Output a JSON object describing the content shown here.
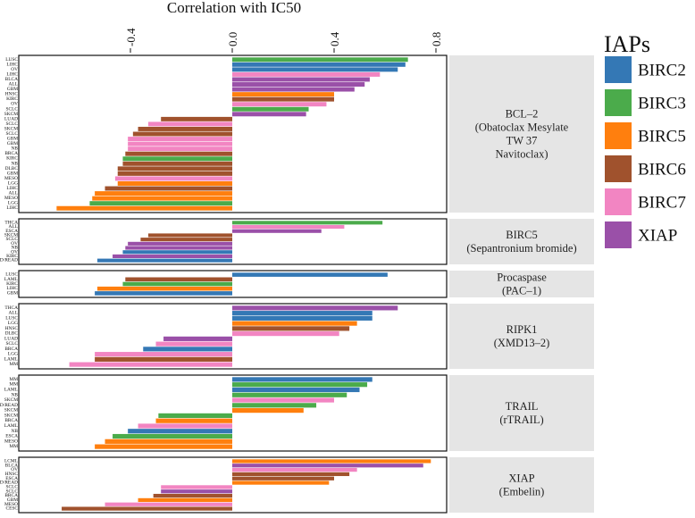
{
  "chart_data": {
    "type": "bar",
    "orientation": "horizontal",
    "axis_title": "Correlation with IC50",
    "x_ticks": [
      -0.4,
      0.0,
      0.4,
      0.8
    ],
    "x_tick_labels": [
      "-0.4",
      "0.0",
      "0.4",
      "0.8"
    ],
    "xlim": [
      -0.7,
      0.84
    ],
    "grid": false,
    "legend": {
      "title": "IAPs",
      "position": "top-right",
      "items": [
        {
          "name": "BIRC2",
          "color": "#3478b5"
        },
        {
          "name": "BIRC3",
          "color": "#4bab4b"
        },
        {
          "name": "BIRC5",
          "color": "#ff7f0e"
        },
        {
          "name": "BIRC6",
          "color": "#a0522d"
        },
        {
          "name": "BIRC7",
          "color": "#f285c2"
        },
        {
          "name": "XIAP",
          "color": "#9a50a8"
        }
      ]
    },
    "panels": [
      {
        "strip": [
          "BCL–2",
          "(Obatoclax Mesylate",
          "TW 37",
          "Navitoclax)"
        ],
        "bars": [
          {
            "label": "LUSC",
            "value": 0.69,
            "iap": "BIRC3"
          },
          {
            "label": "LIHC",
            "value": 0.68,
            "iap": "BIRC2"
          },
          {
            "label": "OV",
            "value": 0.65,
            "iap": "BIRC2"
          },
          {
            "label": "LIHC",
            "value": 0.58,
            "iap": "BIRC7"
          },
          {
            "label": "BLCA",
            "value": 0.54,
            "iap": "XIAP"
          },
          {
            "label": "ALL",
            "value": 0.52,
            "iap": "XIAP"
          },
          {
            "label": "GBM",
            "value": 0.48,
            "iap": "XIAP"
          },
          {
            "label": "HNSC",
            "value": 0.4,
            "iap": "BIRC5"
          },
          {
            "label": "KIRC",
            "value": 0.4,
            "iap": "BIRC6"
          },
          {
            "label": "OV",
            "value": 0.37,
            "iap": "BIRC7"
          },
          {
            "label": "SCLC",
            "value": 0.3,
            "iap": "BIRC3"
          },
          {
            "label": "SKCM",
            "value": 0.29,
            "iap": "XIAP"
          },
          {
            "label": "LUAD",
            "value": -0.28,
            "iap": "BIRC6"
          },
          {
            "label": "SCLC",
            "value": -0.33,
            "iap": "BIRC7"
          },
          {
            "label": "SKCM",
            "value": -0.37,
            "iap": "BIRC6"
          },
          {
            "label": "SCLC",
            "value": -0.39,
            "iap": "BIRC6"
          },
          {
            "label": "GBM",
            "value": -0.41,
            "iap": "BIRC7"
          },
          {
            "label": "GBM",
            "value": -0.41,
            "iap": "BIRC7"
          },
          {
            "label": "NB",
            "value": -0.41,
            "iap": "BIRC7"
          },
          {
            "label": "BRCA",
            "value": -0.42,
            "iap": "BIRC6"
          },
          {
            "label": "KIRC",
            "value": -0.43,
            "iap": "BIRC3"
          },
          {
            "label": "NB",
            "value": -0.43,
            "iap": "BIRC6"
          },
          {
            "label": "DLBC",
            "value": -0.45,
            "iap": "BIRC6"
          },
          {
            "label": "GBM",
            "value": -0.45,
            "iap": "BIRC6"
          },
          {
            "label": "MESO",
            "value": -0.46,
            "iap": "BIRC7"
          },
          {
            "label": "LGG",
            "value": -0.45,
            "iap": "BIRC5"
          },
          {
            "label": "LIHC",
            "value": -0.5,
            "iap": "BIRC6"
          },
          {
            "label": "ALL",
            "value": -0.54,
            "iap": "BIRC5"
          },
          {
            "label": "MESO",
            "value": -0.55,
            "iap": "BIRC5"
          },
          {
            "label": "LGG",
            "value": -0.56,
            "iap": "BIRC3"
          },
          {
            "label": "LIHC",
            "value": -0.69,
            "iap": "BIRC5"
          }
        ]
      },
      {
        "strip": [
          "BIRC5",
          "(Sepantronium bromide)"
        ],
        "bars": [
          {
            "label": "THCA",
            "value": 0.59,
            "iap": "BIRC3"
          },
          {
            "label": "ALL",
            "value": 0.44,
            "iap": "BIRC7"
          },
          {
            "label": "ESCA",
            "value": 0.35,
            "iap": "XIAP"
          },
          {
            "label": "SKCM",
            "value": -0.33,
            "iap": "BIRC6"
          },
          {
            "label": "SCLC",
            "value": -0.36,
            "iap": "BIRC6"
          },
          {
            "label": "OV",
            "value": -0.41,
            "iap": "XIAP"
          },
          {
            "label": "NB",
            "value": -0.42,
            "iap": "XIAP"
          },
          {
            "label": "OV",
            "value": -0.43,
            "iap": "BIRC2"
          },
          {
            "label": "KIRC",
            "value": -0.47,
            "iap": "XIAP"
          },
          {
            "label": "COAD/READ",
            "value": -0.53,
            "iap": "BIRC2"
          }
        ]
      },
      {
        "strip": [
          "Procaspase",
          "(PAC–1)"
        ],
        "bars": [
          {
            "label": "LUSC",
            "value": 0.61,
            "iap": "BIRC2"
          },
          {
            "label": "LAML",
            "value": -0.42,
            "iap": "BIRC6"
          },
          {
            "label": "KIRC",
            "value": -0.43,
            "iap": "BIRC3"
          },
          {
            "label": "LIHC",
            "value": -0.53,
            "iap": "BIRC5"
          },
          {
            "label": "GBM",
            "value": -0.54,
            "iap": "BIRC2"
          }
        ]
      },
      {
        "strip": [
          "RIPK1",
          "(XMD13–2)"
        ],
        "bars": [
          {
            "label": "THCA",
            "value": 0.65,
            "iap": "XIAP"
          },
          {
            "label": "ALL",
            "value": 0.55,
            "iap": "BIRC2"
          },
          {
            "label": "LUSC",
            "value": 0.55,
            "iap": "BIRC2"
          },
          {
            "label": "LGG",
            "value": 0.49,
            "iap": "BIRC5"
          },
          {
            "label": "HNSC",
            "value": 0.46,
            "iap": "BIRC6"
          },
          {
            "label": "DLBC",
            "value": 0.42,
            "iap": "BIRC7"
          },
          {
            "label": "LUAD",
            "value": -0.27,
            "iap": "XIAP"
          },
          {
            "label": "SCLC",
            "value": -0.3,
            "iap": "BIRC7"
          },
          {
            "label": "BRCA",
            "value": -0.35,
            "iap": "BIRC2"
          },
          {
            "label": "LGG",
            "value": -0.54,
            "iap": "BIRC7"
          },
          {
            "label": "LAML",
            "value": -0.54,
            "iap": "BIRC6"
          },
          {
            "label": "MM",
            "value": -0.64,
            "iap": "BIRC7"
          }
        ]
      },
      {
        "strip": [
          "TRAIL",
          "(rTRAIL)"
        ],
        "bars": [
          {
            "label": "MM",
            "value": 0.55,
            "iap": "BIRC2"
          },
          {
            "label": "MM",
            "value": 0.53,
            "iap": "BIRC3"
          },
          {
            "label": "LAML",
            "value": 0.5,
            "iap": "BIRC2"
          },
          {
            "label": "NB",
            "value": 0.45,
            "iap": "BIRC3"
          },
          {
            "label": "SKCM",
            "value": 0.4,
            "iap": "BIRC7"
          },
          {
            "label": "COAD/READ",
            "value": 0.33,
            "iap": "BIRC3"
          },
          {
            "label": "SKCM",
            "value": 0.28,
            "iap": "BIRC5"
          },
          {
            "label": "SKCM",
            "value": -0.29,
            "iap": "BIRC3"
          },
          {
            "label": "BRCA",
            "value": -0.3,
            "iap": "BIRC5"
          },
          {
            "label": "LAML",
            "value": -0.37,
            "iap": "BIRC7"
          },
          {
            "label": "NB",
            "value": -0.41,
            "iap": "BIRC2"
          },
          {
            "label": "ESCA",
            "value": -0.47,
            "iap": "BIRC3"
          },
          {
            "label": "MESO",
            "value": -0.5,
            "iap": "BIRC5"
          },
          {
            "label": "MM",
            "value": -0.54,
            "iap": "BIRC5"
          }
        ]
      },
      {
        "strip": [
          "XIAP",
          "(Embelin)"
        ],
        "bars": [
          {
            "label": "LCML",
            "value": 0.78,
            "iap": "BIRC5"
          },
          {
            "label": "BLCA",
            "value": 0.75,
            "iap": "XIAP"
          },
          {
            "label": "OV",
            "value": 0.49,
            "iap": "BIRC7"
          },
          {
            "label": "HNSC",
            "value": 0.46,
            "iap": "BIRC6"
          },
          {
            "label": "ESCA",
            "value": 0.4,
            "iap": "BIRC6"
          },
          {
            "label": "COAD/READ",
            "value": 0.38,
            "iap": "BIRC5"
          },
          {
            "label": "SCLC",
            "value": -0.28,
            "iap": "BIRC7"
          },
          {
            "label": "SCLC",
            "value": -0.28,
            "iap": "XIAP"
          },
          {
            "label": "BRCA",
            "value": -0.31,
            "iap": "BIRC6"
          },
          {
            "label": "GBM",
            "value": -0.37,
            "iap": "BIRC5"
          },
          {
            "label": "MESO",
            "value": -0.5,
            "iap": "BIRC7"
          },
          {
            "label": "CESC",
            "value": -0.67,
            "iap": "BIRC6"
          }
        ]
      }
    ]
  }
}
